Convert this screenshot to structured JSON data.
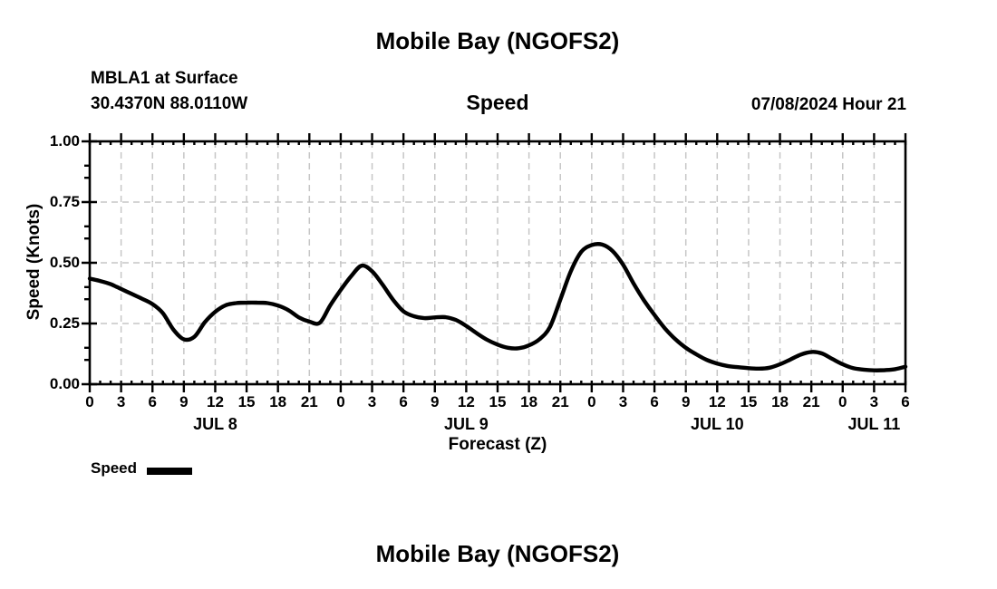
{
  "page": {
    "title": "Mobile Bay (NGOFS2)",
    "footer_title": "Mobile Bay (NGOFS2)"
  },
  "header": {
    "station": "MBLA1 at Surface",
    "coordinates": "30.4370N  88.0110W",
    "variable": "Speed",
    "datetime": "07/08/2024 Hour 21"
  },
  "legend": {
    "label": "Speed",
    "color": "#000000"
  },
  "colors": {
    "line": "#000000",
    "grid": "#c6c6c6",
    "axis": "#000000",
    "background": "#ffffff"
  },
  "chart_data": {
    "type": "line",
    "title": "Speed",
    "xlabel": "Forecast (Z)",
    "ylabel": "Speed (Knots)",
    "ylim": [
      0,
      1
    ],
    "grid": true,
    "legend_position": "bottom-left",
    "y_major_ticks": [
      0,
      0.25,
      0.5,
      0.75,
      1
    ],
    "y_tick_labels": [
      "0.00",
      "0.25",
      "0.50",
      "0.75",
      "1.00"
    ],
    "y_minor_ticks": [
      0.1,
      0.15,
      0.35,
      0.4,
      0.6,
      0.65,
      0.85,
      0.9
    ],
    "x_hours_start": 0,
    "x_hours_end": 78,
    "x_major_step": 3,
    "x_tick_labels": [
      "0",
      "3",
      "6",
      "9",
      "12",
      "15",
      "18",
      "21",
      "0",
      "3",
      "6",
      "9",
      "12",
      "15",
      "18",
      "21",
      "0",
      "3",
      "6",
      "9",
      "12",
      "15",
      "18",
      "21",
      "0",
      "3",
      "6"
    ],
    "date_labels": [
      {
        "label": "JUL 8",
        "hour": 12
      },
      {
        "label": "JUL 9",
        "hour": 36
      },
      {
        "label": "JUL 10",
        "hour": 60
      },
      {
        "label": "JUL 11",
        "hour": 75
      }
    ],
    "series": [
      {
        "name": "Speed",
        "color": "#000000",
        "x_step_hours": 1,
        "values": [
          0.435,
          0.425,
          0.412,
          0.392,
          0.372,
          0.352,
          0.33,
          0.292,
          0.225,
          0.185,
          0.195,
          0.255,
          0.298,
          0.325,
          0.334,
          0.336,
          0.336,
          0.334,
          0.324,
          0.305,
          0.275,
          0.258,
          0.253,
          0.325,
          0.388,
          0.445,
          0.488,
          0.465,
          0.41,
          0.348,
          0.3,
          0.28,
          0.272,
          0.275,
          0.276,
          0.265,
          0.24,
          0.21,
          0.183,
          0.163,
          0.15,
          0.148,
          0.16,
          0.185,
          0.235,
          0.348,
          0.465,
          0.545,
          0.573,
          0.575,
          0.548,
          0.492,
          0.415,
          0.345,
          0.285,
          0.23,
          0.185,
          0.15,
          0.123,
          0.1,
          0.085,
          0.075,
          0.07,
          0.066,
          0.064,
          0.068,
          0.082,
          0.102,
          0.122,
          0.133,
          0.127,
          0.104,
          0.082,
          0.066,
          0.06,
          0.057,
          0.058,
          0.062,
          0.072
        ]
      }
    ]
  }
}
